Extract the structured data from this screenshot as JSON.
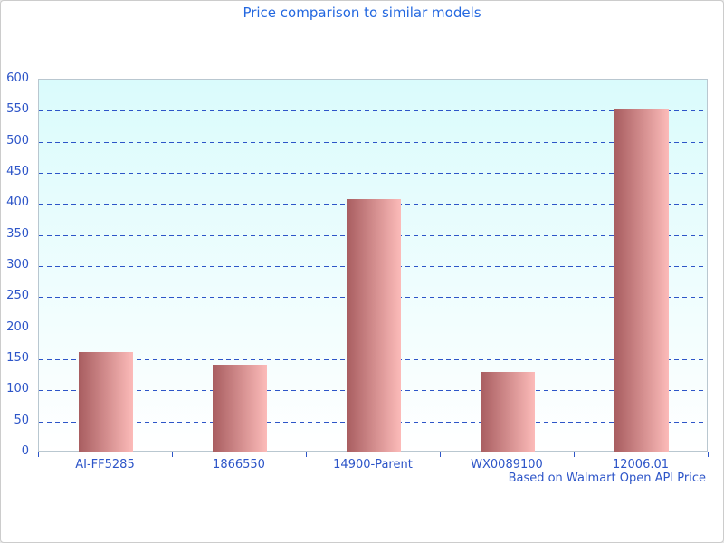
{
  "header": {
    "title": "Price comparison to similar models"
  },
  "footer": {
    "caption": "Based on Walmart Open API Price"
  },
  "colors": {
    "title": "#2468e0",
    "axis_text": "#2d55c8",
    "gridline": "#2d55c8",
    "plot_bg_top": "#dafbfc",
    "plot_bg_bottom": "#ffffff",
    "plot_border": "#b9c7d0",
    "bar_gradient_left": "#a85d60",
    "bar_gradient_right": "#fcbbb9",
    "page_border": "#cccccc"
  },
  "chart_data": {
    "type": "bar",
    "title": "Price comparison to similar models",
    "categories": [
      "AI-FF5285",
      "1866550",
      "14900-Parent",
      "WX0089100",
      "12006.01"
    ],
    "values": [
      162,
      141,
      408,
      130,
      554
    ],
    "xlabel": "",
    "ylabel": "",
    "ylim": [
      0,
      600
    ],
    "ytick_step": 50,
    "grid": "horizontal-dashed",
    "gridline_values": [
      50,
      100,
      150,
      200,
      250,
      300,
      350,
      400,
      450,
      500,
      550
    ],
    "legend": "none",
    "annotation": "Based on Walmart Open API Price",
    "bar_color_gradient": [
      "#a85d60",
      "#fcbbb9"
    ]
  }
}
